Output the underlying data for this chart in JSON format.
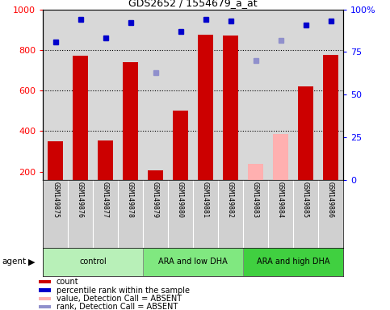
{
  "title": "GDS2652 / 1554679_a_at",
  "samples": [
    "GSM149875",
    "GSM149876",
    "GSM149877",
    "GSM149878",
    "GSM149879",
    "GSM149880",
    "GSM149881",
    "GSM149882",
    "GSM149883",
    "GSM149884",
    "GSM149885",
    "GSM149886"
  ],
  "counts": [
    350,
    770,
    355,
    740,
    205,
    500,
    875,
    870,
    null,
    null,
    620,
    775
  ],
  "counts_absent": [
    null,
    null,
    null,
    null,
    null,
    null,
    null,
    null,
    240,
    385,
    null,
    null
  ],
  "percentile_ranks": [
    81,
    94,
    83,
    92,
    null,
    87,
    94,
    93,
    null,
    null,
    91,
    93
  ],
  "percentile_ranks_absent": [
    null,
    null,
    null,
    null,
    63,
    null,
    null,
    null,
    70,
    82,
    null,
    null
  ],
  "group_colors": {
    "control": "#b8f0b8",
    "ARA and low DHA": "#80e880",
    "ARA and high DHA": "#40d040"
  },
  "ylim_left": [
    160,
    1000
  ],
  "ylim_right": [
    0,
    100
  ],
  "y_ticks_left": [
    200,
    400,
    600,
    800,
    1000
  ],
  "y_ticks_right": [
    0,
    25,
    50,
    75,
    100
  ],
  "bar_color": "#cc0000",
  "bar_absent_color": "#ffb0b0",
  "rank_color": "#0000cc",
  "rank_absent_color": "#9090cc",
  "plot_bg_color": "#d8d8d8",
  "sample_bg_color": "#d0d0d0"
}
